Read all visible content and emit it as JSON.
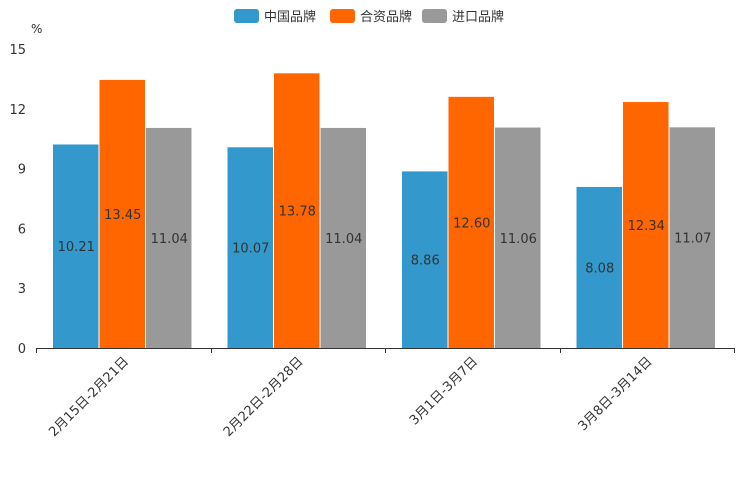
{
  "chart_data": {
    "type": "bar",
    "title": "",
    "xlabel": "",
    "ylabel": "%",
    "ylim": [
      0,
      15
    ],
    "yticks": [
      0,
      3,
      6,
      9,
      12,
      15
    ],
    "legend_position": "top-center",
    "grid": false,
    "categories": [
      "2月15日-2月21日",
      "2月22日-2月28日",
      "3月1日-3月7日",
      "3月8日-3月14日"
    ],
    "series": [
      {
        "name": "中国品牌",
        "color": "#3399cc",
        "values": [
          10.21,
          10.07,
          8.86,
          8.08
        ],
        "labels": [
          "10.21",
          "10.07",
          "8.86",
          "8.08"
        ]
      },
      {
        "name": "合资品牌",
        "color": "#ff6600",
        "values": [
          13.45,
          13.78,
          12.6,
          12.34
        ],
        "labels": [
          "13.45",
          "13.78",
          "12.60",
          "12.34"
        ]
      },
      {
        "name": "进口品牌",
        "color": "#999999",
        "values": [
          11.04,
          11.04,
          11.06,
          11.07
        ],
        "labels": [
          "11.04",
          "11.04",
          "11.06",
          "11.07"
        ]
      }
    ]
  }
}
